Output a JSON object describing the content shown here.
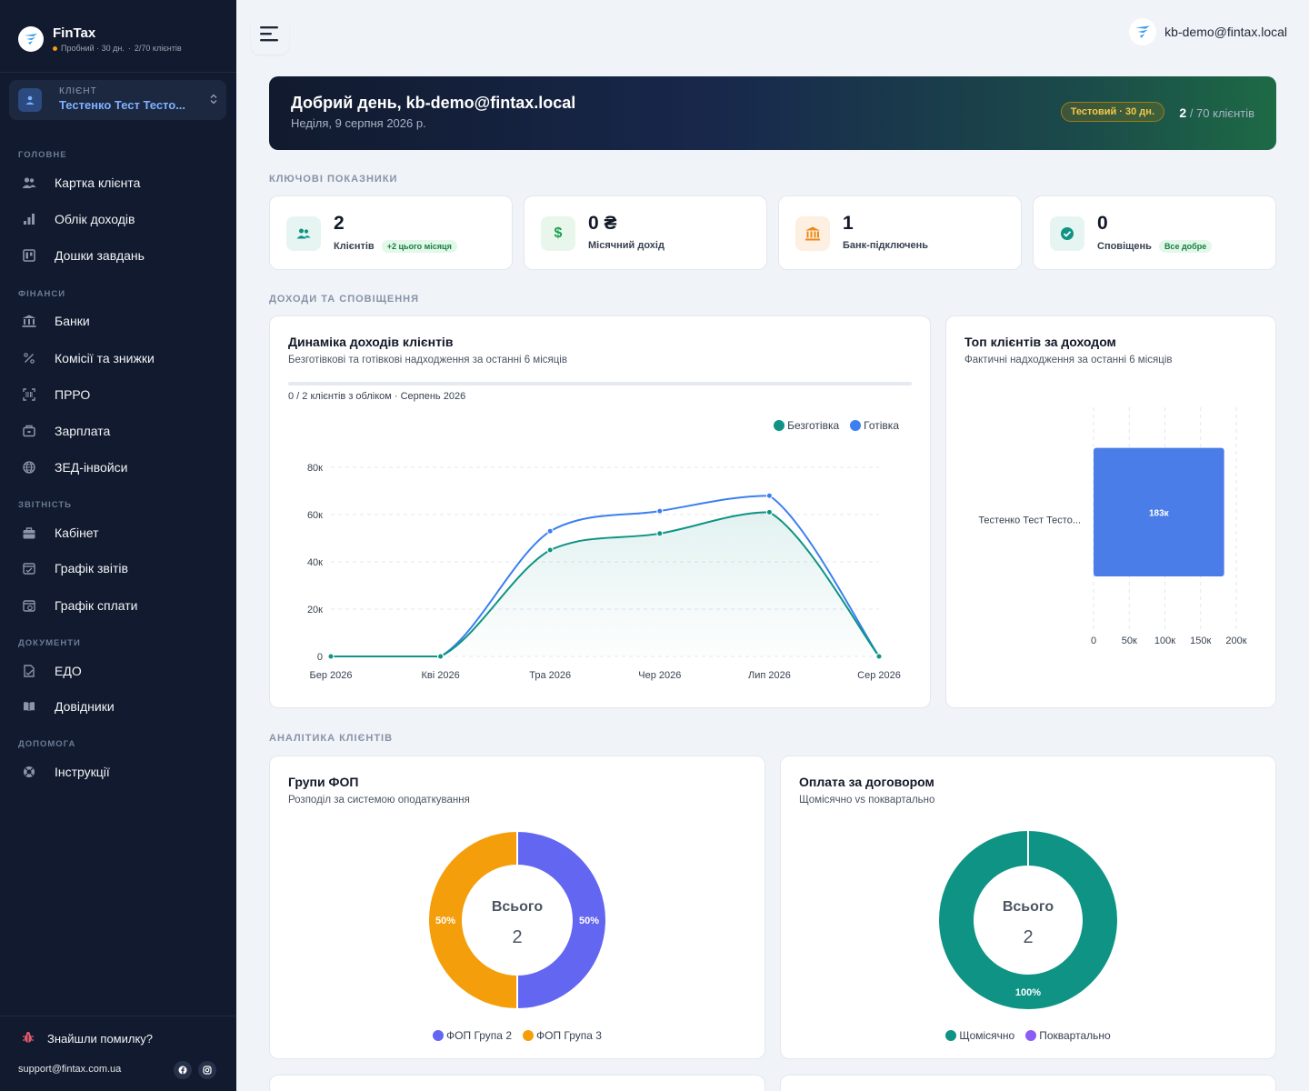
{
  "sidebar": {
    "brand": "FinTax",
    "trial": "Пробний · 30 дн.",
    "sep": "·",
    "clients_limit": "2/70 клієнтів",
    "client_caption": "КЛІЄНТ",
    "client_name": "Тестенко Тест Тесто...",
    "sections": [
      {
        "title": "ГОЛОВНЕ",
        "items": [
          {
            "label": "Картка клієнта",
            "icon": "users-icon"
          },
          {
            "label": "Облік доходів",
            "icon": "bar-chart-icon"
          },
          {
            "label": "Дошки завдань",
            "icon": "kanban-icon"
          }
        ]
      },
      {
        "title": "ФІНАНСИ",
        "items": [
          {
            "label": "Банки",
            "icon": "bank-icon"
          },
          {
            "label": "Комісії та знижки",
            "icon": "percent-icon"
          },
          {
            "label": "ПРРО",
            "icon": "barcode-icon"
          },
          {
            "label": "Зарплата",
            "icon": "wallet-icon"
          },
          {
            "label": "ЗЕД-інвойси",
            "icon": "globe-icon"
          }
        ]
      },
      {
        "title": "ЗВІТНІСТЬ",
        "items": [
          {
            "label": "Кабінет",
            "icon": "briefcase-icon"
          },
          {
            "label": "Графік звітів",
            "icon": "calendar-icon"
          },
          {
            "label": "Графік сплати",
            "icon": "calendar-money-icon"
          }
        ]
      },
      {
        "title": "ДОКУМЕНТИ",
        "items": [
          {
            "label": "ЕДО",
            "icon": "document-sign-icon"
          },
          {
            "label": "Довідники",
            "icon": "book-icon"
          }
        ]
      },
      {
        "title": "ДОПОМОГА",
        "items": [
          {
            "label": "Інструкції",
            "icon": "lifebuoy-icon"
          }
        ]
      }
    ],
    "bug_label": "Знайшли помилку?",
    "support_email": "support@fintax.com.ua"
  },
  "header": {
    "user_email": "kb-demo@fintax.local"
  },
  "hero": {
    "title": "Добрий день, kb-demo@fintax.local",
    "date": "Неділя, 9 серпня 2026 р.",
    "badge": "Тестовий · 30 дн.",
    "count": "2",
    "count_suffix": " / 70 клієнтів"
  },
  "sections": {
    "kpi": "КЛЮЧОВІ ПОКАЗНИКИ",
    "income": "ДОХОДИ ТА СПОВІЩЕННЯ",
    "analytics": "АНАЛІТИКА КЛІЄНТІВ"
  },
  "kpis": [
    {
      "value": "2",
      "label": "Клієнтів",
      "pill": "+2 цього місяця",
      "icon": "users-icon",
      "color": "#0e9384"
    },
    {
      "value": "0 ₴",
      "label": "Місячний дохід",
      "pill": "",
      "icon": "dollar-icon",
      "color": "#16a34a"
    },
    {
      "value": "1",
      "label": "Банк-підключень",
      "pill": "",
      "icon": "bank-icon",
      "color": "#ea8a18"
    },
    {
      "value": "0",
      "label": "Сповіщень",
      "pill": "Все добре",
      "icon": "check-circle-icon",
      "color": "#0e9384"
    }
  ],
  "income_card": {
    "title": "Динаміка доходів клієнтів",
    "subtitle": "Безготівкові та готівкові надходження за останні 6 місяців",
    "progress_note": "0 / 2 клієнтів з обліком · Серпень 2026",
    "progress": 0
  },
  "top_card": {
    "title": "Топ клієнтів за доходом",
    "subtitle": "Фактичні надходження за останні 6 місяців"
  },
  "fop_card": {
    "title": "Групи ФОП",
    "subtitle": "Розподіл за системою оподаткування",
    "center_label": "Всього",
    "center_value": "2"
  },
  "pay_card": {
    "title": "Оплата за договором",
    "subtitle": "Щомісячно vs поквартально",
    "center_label": "Всього",
    "center_value": "2"
  },
  "chart_data": [
    {
      "type": "line",
      "x": [
        "Бер 2026",
        "Кві 2026",
        "Тра 2026",
        "Чер 2026",
        "Лип 2026",
        "Сер 2026"
      ],
      "series": [
        {
          "name": "Безготівка",
          "color": "#0e9384",
          "values": [
            0,
            0,
            45000,
            52000,
            61000,
            0
          ]
        },
        {
          "name": "Готівка",
          "color": "#3b7ff0",
          "values": [
            0,
            0,
            53000,
            61500,
            68000,
            0
          ]
        }
      ],
      "yticks": [
        "0",
        "20к",
        "40к",
        "60к",
        "80к"
      ],
      "ylim": [
        0,
        80000
      ],
      "grid": true,
      "legend": "top-right"
    },
    {
      "type": "bar",
      "orientation": "horizontal",
      "categories": [
        "Тестенко Тест Тесто..."
      ],
      "values": [
        183000
      ],
      "value_labels": [
        "183к"
      ],
      "xticks": [
        "0",
        "50к",
        "100к",
        "150к",
        "200к"
      ],
      "xlim": [
        0,
        200000
      ],
      "color": "#4a7de8"
    },
    {
      "type": "pie",
      "donut": true,
      "labels": [
        "ФОП Група 2",
        "ФОП Група 3"
      ],
      "values": [
        50,
        50
      ],
      "value_labels": [
        "50%",
        "50%"
      ],
      "colors": [
        "#6366f1",
        "#f59e0b"
      ]
    },
    {
      "type": "pie",
      "donut": true,
      "labels": [
        "Щомісячно",
        "Поквартально"
      ],
      "values": [
        100,
        0
      ],
      "value_labels": [
        "100%",
        ""
      ],
      "colors": [
        "#0e9384",
        "#8b5cf6"
      ]
    }
  ]
}
